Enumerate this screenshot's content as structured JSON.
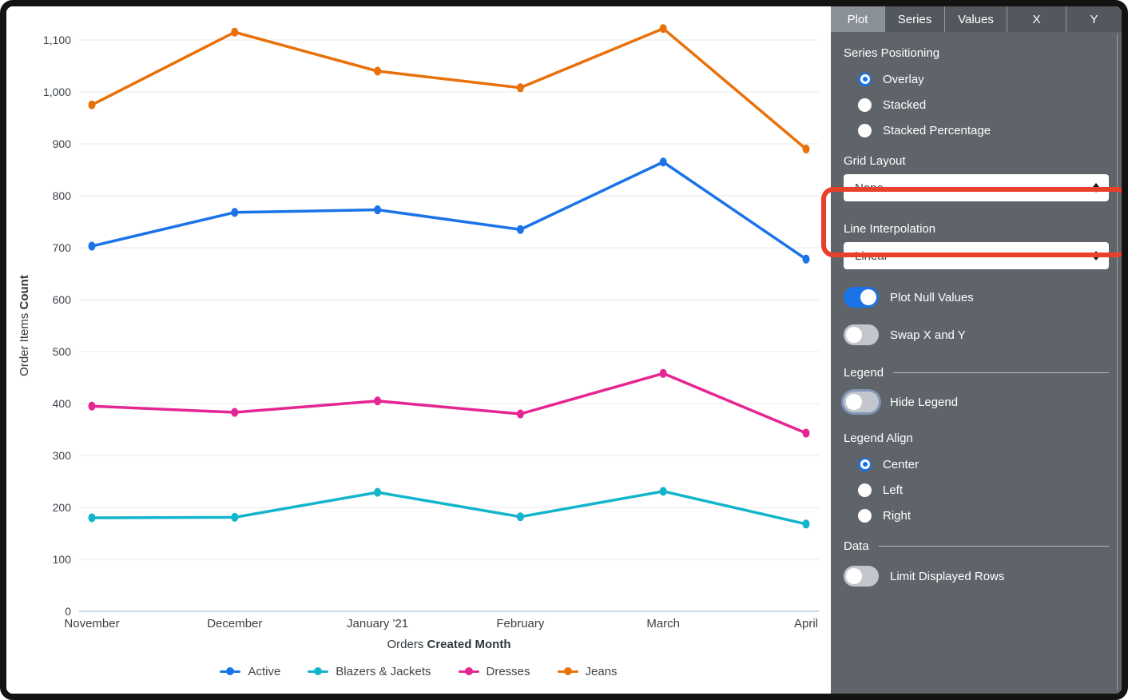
{
  "chart_data": {
    "type": "line",
    "x": [
      "November",
      "December",
      "January '21",
      "February",
      "March",
      "April"
    ],
    "xlabel_view": "Orders ",
    "xlabel_field": "Created Month",
    "ylabel_view": "Order Items ",
    "ylabel_field": "Count",
    "ylim": [
      0,
      1100
    ],
    "ytick_step": 100,
    "grid": true,
    "legend_position": "bottom-center",
    "series": [
      {
        "name": "Active",
        "color": "#1A73E8",
        "values": [
          703,
          768,
          773,
          735,
          865,
          678
        ]
      },
      {
        "name": "Blazers & Jackets",
        "color": "#12B5CB",
        "values": [
          180,
          181,
          229,
          182,
          231,
          168
        ]
      },
      {
        "name": "Dresses",
        "color": "#E52592",
        "values": [
          395,
          383,
          405,
          380,
          458,
          343
        ]
      },
      {
        "name": "Jeans",
        "color": "#E8710A",
        "values": [
          975,
          1115,
          1040,
          1008,
          1122,
          890
        ]
      }
    ]
  },
  "panel": {
    "tabs": [
      {
        "label": "Plot",
        "active": true
      },
      {
        "label": "Series",
        "active": false
      },
      {
        "label": "Values",
        "active": false
      },
      {
        "label": "X",
        "active": false
      },
      {
        "label": "Y",
        "active": false
      }
    ],
    "series_positioning": {
      "label": "Series Positioning",
      "options": [
        {
          "label": "Overlay",
          "selected": true
        },
        {
          "label": "Stacked",
          "selected": false
        },
        {
          "label": "Stacked Percentage",
          "selected": false
        }
      ]
    },
    "grid_layout": {
      "label": "Grid Layout",
      "value": "None",
      "highlighted": true,
      "highlight_color": "#e8402b"
    },
    "line_interpolation": {
      "label": "Line Interpolation",
      "value": "Linear"
    },
    "toggles": {
      "plot_null_values": {
        "label": "Plot Null Values",
        "on": true
      },
      "swap_x_y": {
        "label": "Swap X and Y",
        "on": false
      },
      "hide_legend": {
        "label": "Hide Legend",
        "on": false
      },
      "limit_displayed_rows": {
        "label": "Limit Displayed Rows",
        "on": false
      }
    },
    "legend_section": {
      "header": "Legend"
    },
    "legend_align": {
      "label": "Legend Align",
      "options": [
        {
          "label": "Center",
          "selected": true
        },
        {
          "label": "Left",
          "selected": false
        },
        {
          "label": "Right",
          "selected": false
        }
      ]
    },
    "data_section": {
      "header": "Data"
    },
    "accent_color": "#1A73E8"
  }
}
